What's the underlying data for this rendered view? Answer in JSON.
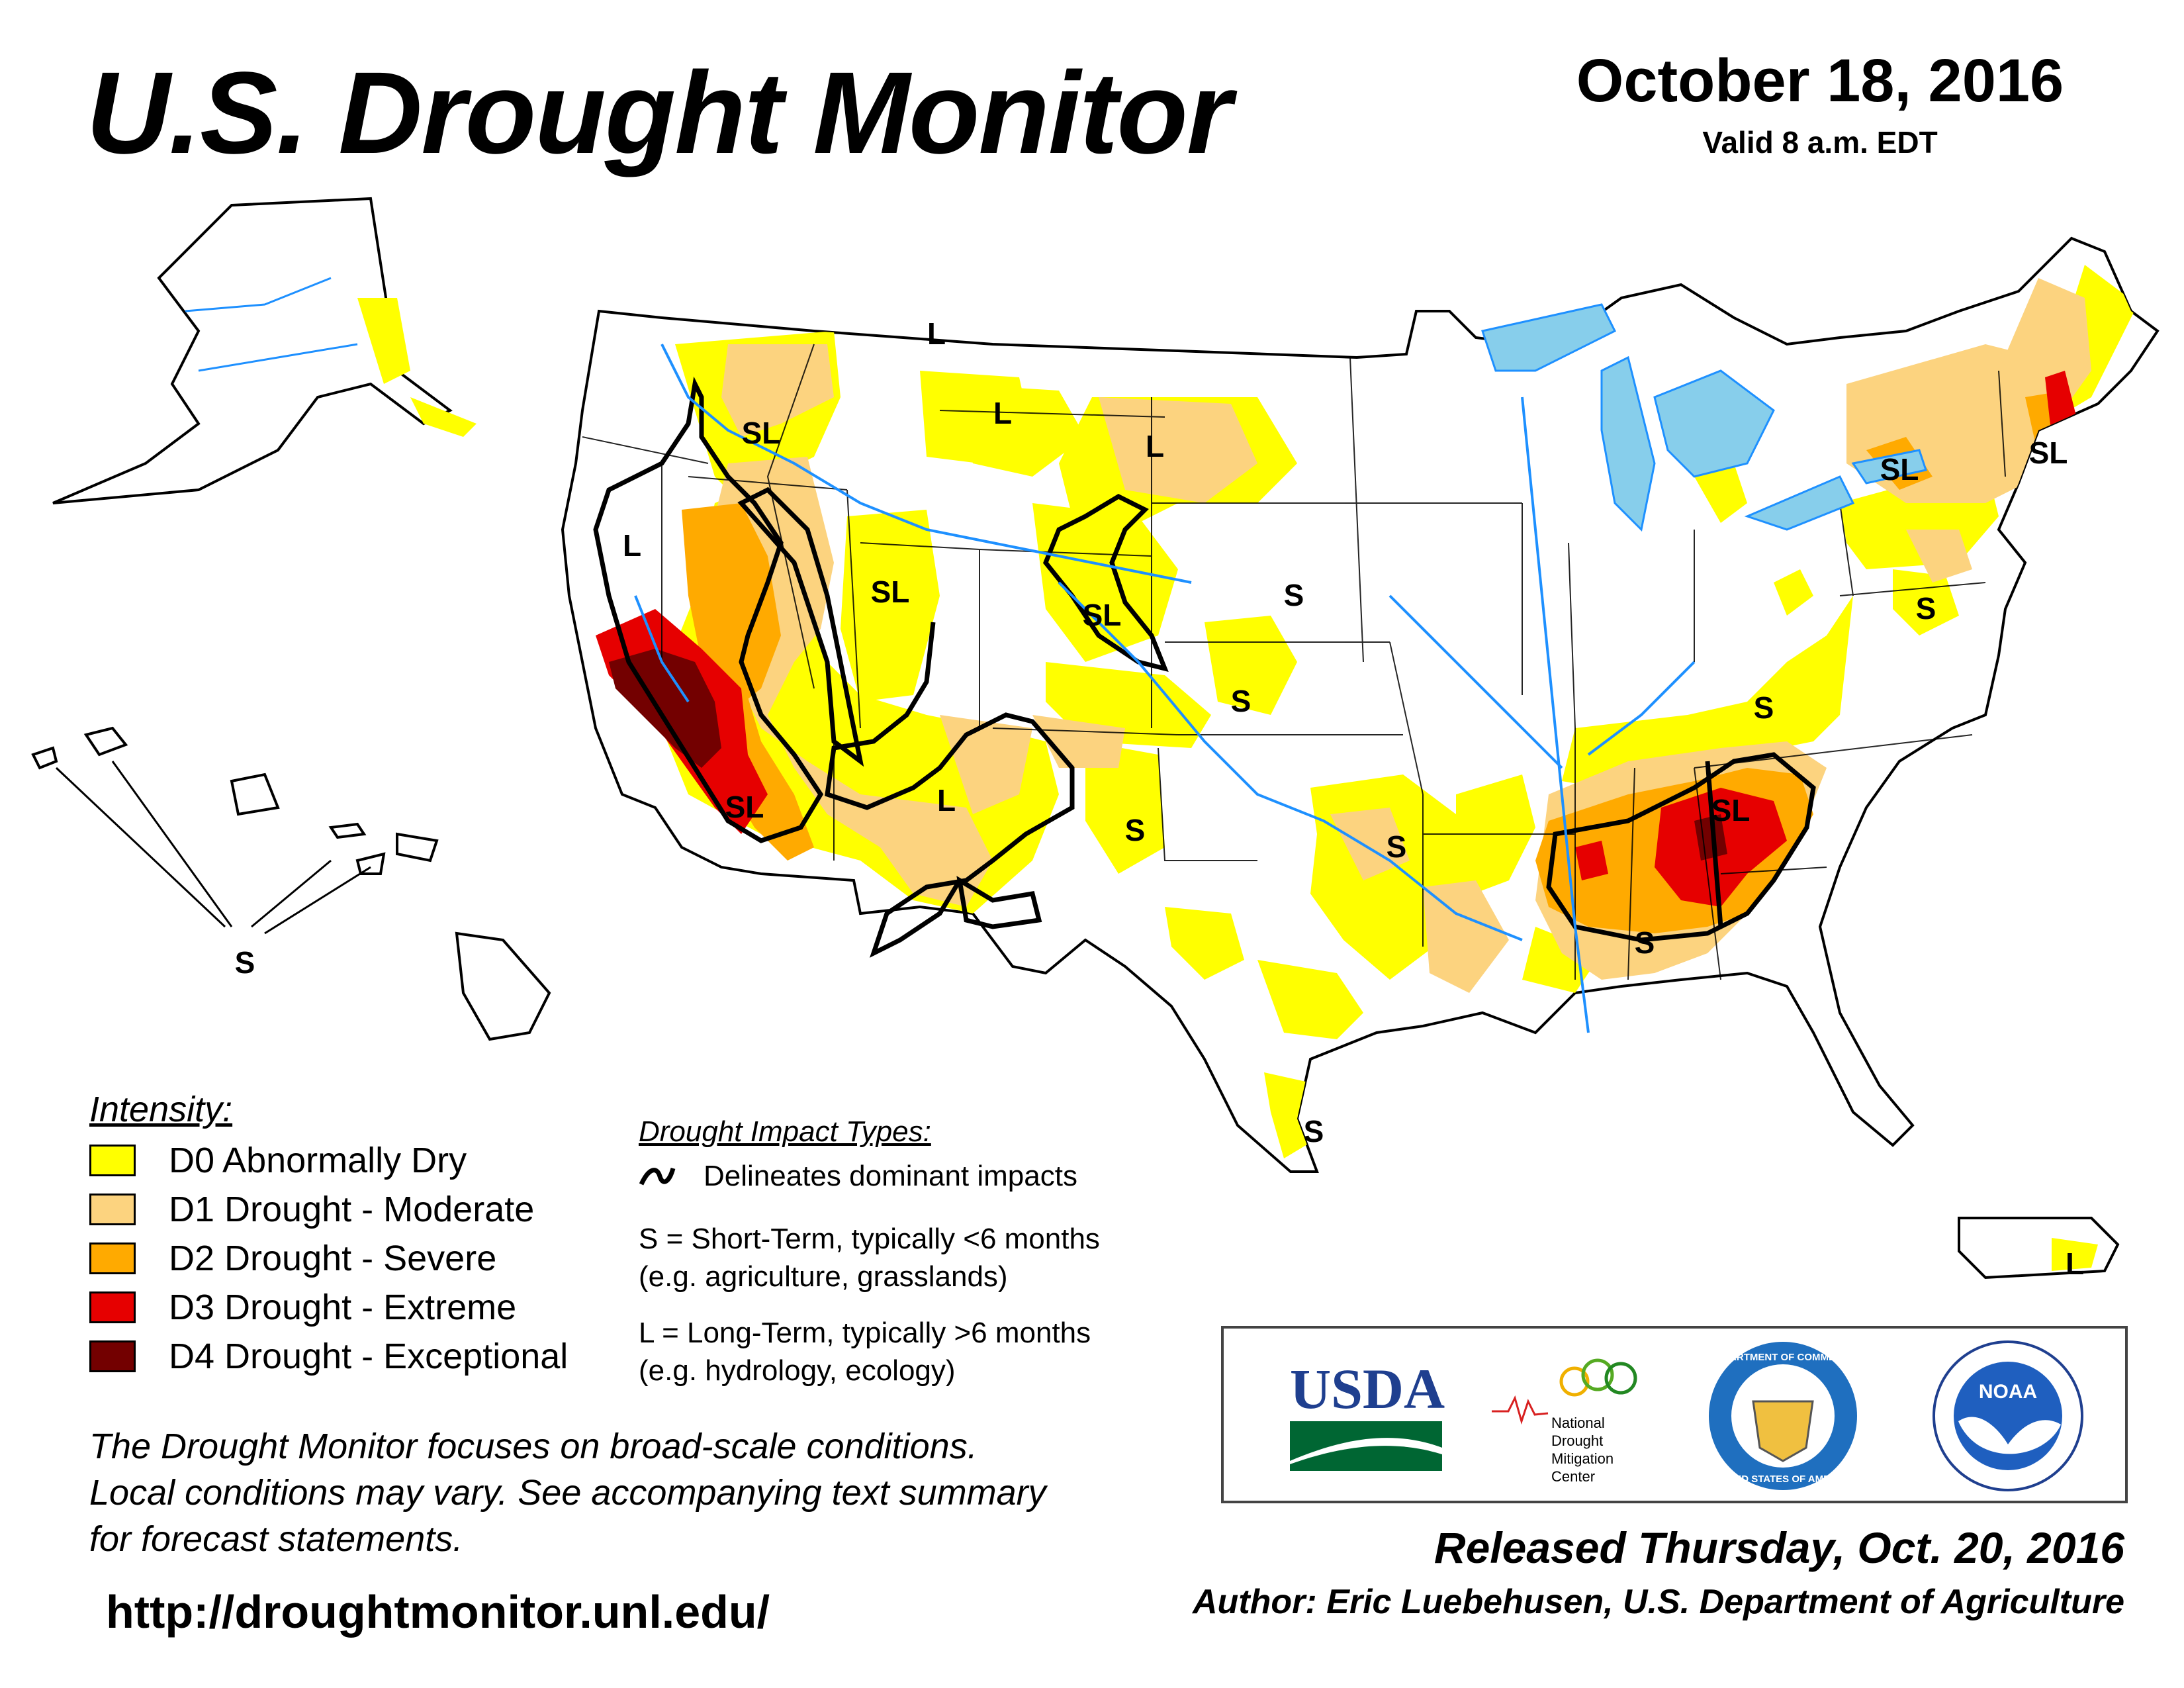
{
  "header": {
    "title": "U.S. Drought Monitor",
    "date": "October 18, 2016",
    "valid": "Valid 8 a.m. EDT"
  },
  "legend": {
    "title": "Intensity:",
    "items": [
      {
        "label": "D0 Abnormally Dry",
        "color": "#ffff00"
      },
      {
        "label": "D1 Drought - Moderate",
        "color": "#fcd37f"
      },
      {
        "label": "D2 Drought - Severe",
        "color": "#ffaa00"
      },
      {
        "label": "D3 Drought - Extreme",
        "color": "#e60000"
      },
      {
        "label": "D4 Drought - Exceptional",
        "color": "#730000"
      }
    ]
  },
  "impacts": {
    "title": "Drought Impact Types:",
    "line_label": "Delineates dominant impacts",
    "short_term": "S = Short-Term, typically <6 months",
    "short_term_examples": "(e.g. agriculture, grasslands)",
    "long_term": "L = Long-Term, typically >6 months",
    "long_term_examples": "(e.g. hydrology, ecology)"
  },
  "note": {
    "line1": "The Drought Monitor focuses on broad-scale conditions.",
    "line2": "Local conditions may vary. See accompanying text summary",
    "line3": "for forecast statements."
  },
  "footer": {
    "url": "http://droughtmonitor.unl.edu/",
    "released": "Released Thursday, Oct. 20, 2016",
    "author": "Author: Eric Luebehusen, U.S. Department of Agriculture"
  },
  "logos": {
    "usda": "USDA",
    "ndmc_line1": "National",
    "ndmc_line2": "Drought",
    "ndmc_line3": "Mitigation",
    "ndmc_line4": "Center",
    "commerce": "DEPARTMENT OF COMMERCE",
    "commerce_bottom": "UNITED STATES OF AMERICA",
    "noaa": "NOAA"
  },
  "map_labels": {
    "ak_none": "",
    "pnw_sl": "SL",
    "mt_l": "L",
    "mt2_l": "L",
    "wy_l": "L",
    "nca_l": "L",
    "ut_sl": "SL",
    "co_sl": "SL",
    "ne_s": "S",
    "ks_s": "S",
    "sca_sl": "SL",
    "az_l": "L",
    "nm_s": "S",
    "ok_s": "S",
    "tx_s": "S",
    "al_s": "S",
    "se_sl": "SL",
    "ky_s": "S",
    "ny_sl": "SL",
    "ne_sl": "SL",
    "nj_s": "S",
    "hi_s": "S",
    "pr_l": "L"
  }
}
